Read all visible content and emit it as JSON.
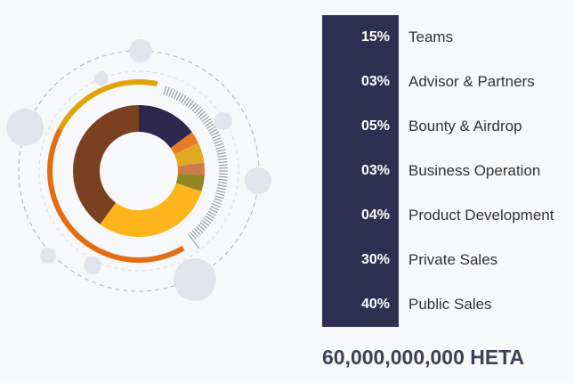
{
  "chart_data": {
    "type": "pie",
    "subtype": "donut",
    "categories": [
      "Teams",
      "Advisor & Partners",
      "Bounty & Airdrop",
      "Business Operation",
      "Product Development",
      "Private Sales",
      "Public Sales"
    ],
    "values": [
      15,
      3,
      5,
      3,
      4,
      30,
      40
    ],
    "colors": [
      "#2d264d",
      "#e97a25",
      "#e0a923",
      "#cf7a4c",
      "#928625",
      "#fdb51b",
      "#7b4020"
    ],
    "legend": [
      {
        "pct": "15%",
        "label": "Teams"
      },
      {
        "pct": "03%",
        "label": "Advisor & Partners"
      },
      {
        "pct": "05%",
        "label": "Bounty & Airdrop"
      },
      {
        "pct": "03%",
        "label": "Business Operation"
      },
      {
        "pct": "04%",
        "label": "Product Development"
      },
      {
        "pct": "30%",
        "label": "Private Sales"
      },
      {
        "pct": "40%",
        "label": "Public Sales"
      }
    ],
    "legend_placement": "right"
  },
  "total": "60,000,000,000 HETA",
  "accent_colors": {
    "legend_bg": "#2f2f52",
    "arc_gold": "#e0a30a",
    "arc_orange": "#e46c12",
    "bubble": "#e1e4ea"
  }
}
